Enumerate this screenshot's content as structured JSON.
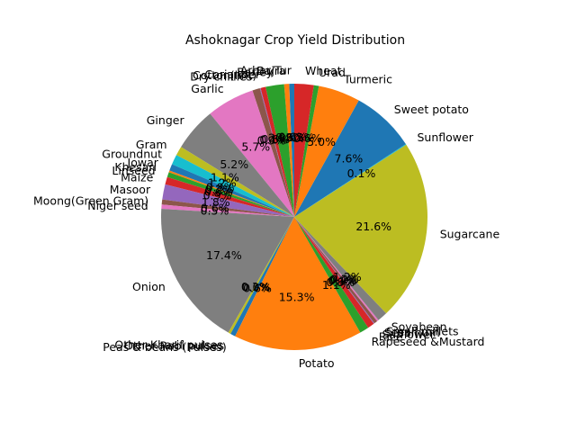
{
  "chart_data": {
    "type": "pie",
    "title": "Ashoknagar Crop Yield Distribution",
    "start_angle_deg": 90,
    "counterclock": true,
    "colors_cycle": [
      "#1f77b4",
      "#ff7f0e",
      "#2ca02c",
      "#d62728",
      "#9467bd",
      "#8c564b",
      "#e377c2",
      "#7f7f7f",
      "#bcbd22",
      "#17becf"
    ],
    "slices": [
      {
        "label": "Arhar/Tur",
        "value": 0.6,
        "pct_label": "0.6%"
      },
      {
        "label": "Bajra",
        "value": 0.6,
        "pct_label": "0.6%"
      },
      {
        "label": "Barley",
        "value": 2.2,
        "pct_label": "2.2%"
      },
      {
        "label": "Coriander",
        "value": 0.6,
        "pct_label": "0.6%"
      },
      {
        "label": "Cotton(lint)",
        "value": 0.1,
        "pct_label": "0.1%"
      },
      {
        "label": "Dry chillies",
        "value": 0.9,
        "pct_label": "0.9%"
      },
      {
        "label": "Garlic",
        "value": 5.7,
        "pct_label": "5.7%"
      },
      {
        "label": "Ginger",
        "value": 5.2,
        "pct_label": "5.2%"
      },
      {
        "label": "Gram",
        "value": 1.1,
        "pct_label": "1.1%"
      },
      {
        "label": "Groundnut",
        "value": 1.2,
        "pct_label": "1.2%"
      },
      {
        "label": "Jowar",
        "value": 0.8,
        "pct_label": "0.8%"
      },
      {
        "label": "Khesari",
        "value": 0.2,
        "pct_label": "0.2%"
      },
      {
        "label": "Linseed",
        "value": 0.6,
        "pct_label": "0.6%"
      },
      {
        "label": "Maize",
        "value": 0.9,
        "pct_label": "0.9%"
      },
      {
        "label": "Masoor",
        "value": 1.8,
        "pct_label": "1.8%"
      },
      {
        "label": "Moong(Green Gram)",
        "value": 0.6,
        "pct_label": "0.6%"
      },
      {
        "label": "Niger seed",
        "value": 0.5,
        "pct_label": "0.5%"
      },
      {
        "label": "Onion",
        "value": 17.4,
        "pct_label": "17.4%"
      },
      {
        "label": "Other Kharif pulses",
        "value": 0.3,
        "pct_label": "0.3%"
      },
      {
        "label": "Other Rabi pulses",
        "value": 0.0,
        "pct_label": "0.0%"
      },
      {
        "label": "Peas & beans (Pulses)",
        "value": 0.6,
        "pct_label": "0.6%"
      },
      {
        "label": "Potato",
        "value": 15.3,
        "pct_label": "15.3%"
      },
      {
        "label": "Rapeseed &Mustard",
        "value": 1.1,
        "pct_label": "1.1%"
      },
      {
        "label": "Rice",
        "value": 0.8,
        "pct_label": "0.8%"
      },
      {
        "label": "Safflower",
        "value": 0.1,
        "pct_label": "0.1%"
      },
      {
        "label": "Sesamum",
        "value": 0.4,
        "pct_label": "0.4%"
      },
      {
        "label": "Small millets",
        "value": 0.2,
        "pct_label": "0.2%"
      },
      {
        "label": "Soyabean",
        "value": 1.2,
        "pct_label": "1.2%"
      },
      {
        "label": "Sugarcane",
        "value": 21.6,
        "pct_label": "21.6%"
      },
      {
        "label": "Sunflower",
        "value": 0.1,
        "pct_label": "0.1%"
      },
      {
        "label": "Sweet potato",
        "value": 7.6,
        "pct_label": "7.6%"
      },
      {
        "label": "Turmeric",
        "value": 5.0,
        "pct_label": "5.0%"
      },
      {
        "label": "Urad",
        "value": 0.6,
        "pct_label": "0.6%"
      },
      {
        "label": "Wheat",
        "value": 2.3,
        "pct_label": "2.3%"
      }
    ]
  }
}
